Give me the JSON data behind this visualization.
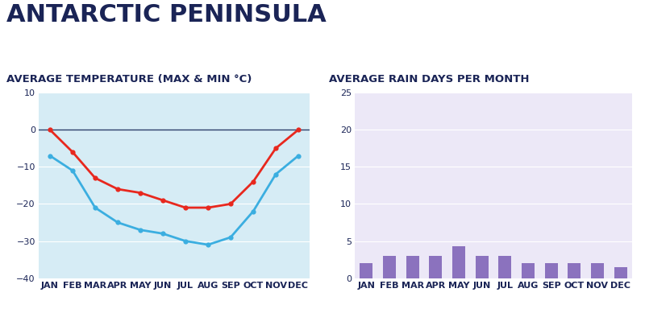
{
  "title": "ANTARCTIC PENINSULA",
  "temp_subtitle": "AVERAGE TEMPERATURE (MAX & MIN °C)",
  "rain_subtitle": "AVERAGE RAIN DAYS PER MONTH",
  "months": [
    "JAN",
    "FEB",
    "MAR",
    "APR",
    "MAY",
    "JUN",
    "JUL",
    "AUG",
    "SEP",
    "OCT",
    "NOV",
    "DEC"
  ],
  "temp_max": [
    0,
    -6,
    -13,
    -16,
    -17,
    -19,
    -21,
    -21,
    -20,
    -14,
    -5,
    0
  ],
  "temp_min": [
    -7,
    -11,
    -21,
    -25,
    -27,
    -28,
    -30,
    -31,
    -29,
    -22,
    -12,
    -7
  ],
  "rain_days": [
    2,
    3,
    3,
    3,
    4.3,
    3,
    3,
    2,
    2,
    2,
    2,
    1.5
  ],
  "temp_ylim": [
    -40,
    10
  ],
  "rain_ylim": [
    0,
    25
  ],
  "temp_bg": "#d6ecf5",
  "rain_bg": "#ece8f7",
  "max_color": "#e8281e",
  "min_color": "#3baee0",
  "bar_color": "#8b72be",
  "title_color": "#1a2456",
  "zero_line_color": "#2c3e6b",
  "grid_color": "#ffffff",
  "title_fontsize": 22,
  "subtitle_fontsize": 9.5,
  "tick_fontsize": 8
}
